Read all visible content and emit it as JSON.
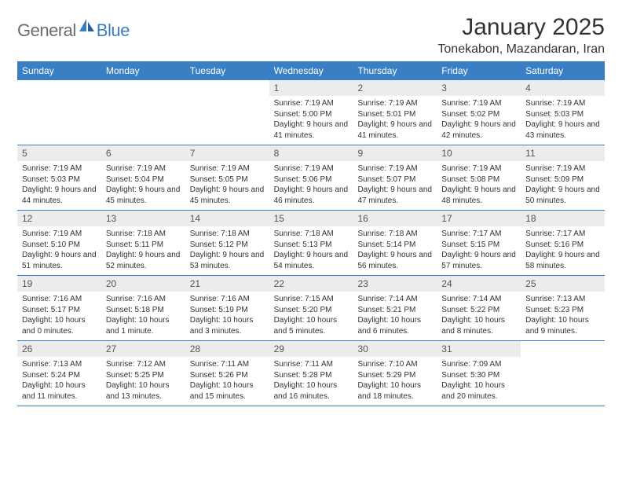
{
  "logo": {
    "text1": "General",
    "text2": "Blue"
  },
  "title": "January 2025",
  "location": "Tonekabon, Mazandaran, Iran",
  "colors": {
    "header_bg": "#3a7fc4",
    "daynum_bg": "#ececec",
    "row_border": "#3a7fc4",
    "text": "#333333",
    "logo_gray": "#6b6b6b",
    "logo_blue": "#3a7fc4"
  },
  "day_names": [
    "Sunday",
    "Monday",
    "Tuesday",
    "Wednesday",
    "Thursday",
    "Friday",
    "Saturday"
  ],
  "weeks": [
    [
      {
        "n": "",
        "sr": "",
        "ss": "",
        "dl": ""
      },
      {
        "n": "",
        "sr": "",
        "ss": "",
        "dl": ""
      },
      {
        "n": "",
        "sr": "",
        "ss": "",
        "dl": ""
      },
      {
        "n": "1",
        "sr": "Sunrise: 7:19 AM",
        "ss": "Sunset: 5:00 PM",
        "dl": "Daylight: 9 hours and 41 minutes."
      },
      {
        "n": "2",
        "sr": "Sunrise: 7:19 AM",
        "ss": "Sunset: 5:01 PM",
        "dl": "Daylight: 9 hours and 41 minutes."
      },
      {
        "n": "3",
        "sr": "Sunrise: 7:19 AM",
        "ss": "Sunset: 5:02 PM",
        "dl": "Daylight: 9 hours and 42 minutes."
      },
      {
        "n": "4",
        "sr": "Sunrise: 7:19 AM",
        "ss": "Sunset: 5:03 PM",
        "dl": "Daylight: 9 hours and 43 minutes."
      }
    ],
    [
      {
        "n": "5",
        "sr": "Sunrise: 7:19 AM",
        "ss": "Sunset: 5:03 PM",
        "dl": "Daylight: 9 hours and 44 minutes."
      },
      {
        "n": "6",
        "sr": "Sunrise: 7:19 AM",
        "ss": "Sunset: 5:04 PM",
        "dl": "Daylight: 9 hours and 45 minutes."
      },
      {
        "n": "7",
        "sr": "Sunrise: 7:19 AM",
        "ss": "Sunset: 5:05 PM",
        "dl": "Daylight: 9 hours and 45 minutes."
      },
      {
        "n": "8",
        "sr": "Sunrise: 7:19 AM",
        "ss": "Sunset: 5:06 PM",
        "dl": "Daylight: 9 hours and 46 minutes."
      },
      {
        "n": "9",
        "sr": "Sunrise: 7:19 AM",
        "ss": "Sunset: 5:07 PM",
        "dl": "Daylight: 9 hours and 47 minutes."
      },
      {
        "n": "10",
        "sr": "Sunrise: 7:19 AM",
        "ss": "Sunset: 5:08 PM",
        "dl": "Daylight: 9 hours and 48 minutes."
      },
      {
        "n": "11",
        "sr": "Sunrise: 7:19 AM",
        "ss": "Sunset: 5:09 PM",
        "dl": "Daylight: 9 hours and 50 minutes."
      }
    ],
    [
      {
        "n": "12",
        "sr": "Sunrise: 7:19 AM",
        "ss": "Sunset: 5:10 PM",
        "dl": "Daylight: 9 hours and 51 minutes."
      },
      {
        "n": "13",
        "sr": "Sunrise: 7:18 AM",
        "ss": "Sunset: 5:11 PM",
        "dl": "Daylight: 9 hours and 52 minutes."
      },
      {
        "n": "14",
        "sr": "Sunrise: 7:18 AM",
        "ss": "Sunset: 5:12 PM",
        "dl": "Daylight: 9 hours and 53 minutes."
      },
      {
        "n": "15",
        "sr": "Sunrise: 7:18 AM",
        "ss": "Sunset: 5:13 PM",
        "dl": "Daylight: 9 hours and 54 minutes."
      },
      {
        "n": "16",
        "sr": "Sunrise: 7:18 AM",
        "ss": "Sunset: 5:14 PM",
        "dl": "Daylight: 9 hours and 56 minutes."
      },
      {
        "n": "17",
        "sr": "Sunrise: 7:17 AM",
        "ss": "Sunset: 5:15 PM",
        "dl": "Daylight: 9 hours and 57 minutes."
      },
      {
        "n": "18",
        "sr": "Sunrise: 7:17 AM",
        "ss": "Sunset: 5:16 PM",
        "dl": "Daylight: 9 hours and 58 minutes."
      }
    ],
    [
      {
        "n": "19",
        "sr": "Sunrise: 7:16 AM",
        "ss": "Sunset: 5:17 PM",
        "dl": "Daylight: 10 hours and 0 minutes."
      },
      {
        "n": "20",
        "sr": "Sunrise: 7:16 AM",
        "ss": "Sunset: 5:18 PM",
        "dl": "Daylight: 10 hours and 1 minute."
      },
      {
        "n": "21",
        "sr": "Sunrise: 7:16 AM",
        "ss": "Sunset: 5:19 PM",
        "dl": "Daylight: 10 hours and 3 minutes."
      },
      {
        "n": "22",
        "sr": "Sunrise: 7:15 AM",
        "ss": "Sunset: 5:20 PM",
        "dl": "Daylight: 10 hours and 5 minutes."
      },
      {
        "n": "23",
        "sr": "Sunrise: 7:14 AM",
        "ss": "Sunset: 5:21 PM",
        "dl": "Daylight: 10 hours and 6 minutes."
      },
      {
        "n": "24",
        "sr": "Sunrise: 7:14 AM",
        "ss": "Sunset: 5:22 PM",
        "dl": "Daylight: 10 hours and 8 minutes."
      },
      {
        "n": "25",
        "sr": "Sunrise: 7:13 AM",
        "ss": "Sunset: 5:23 PM",
        "dl": "Daylight: 10 hours and 9 minutes."
      }
    ],
    [
      {
        "n": "26",
        "sr": "Sunrise: 7:13 AM",
        "ss": "Sunset: 5:24 PM",
        "dl": "Daylight: 10 hours and 11 minutes."
      },
      {
        "n": "27",
        "sr": "Sunrise: 7:12 AM",
        "ss": "Sunset: 5:25 PM",
        "dl": "Daylight: 10 hours and 13 minutes."
      },
      {
        "n": "28",
        "sr": "Sunrise: 7:11 AM",
        "ss": "Sunset: 5:26 PM",
        "dl": "Daylight: 10 hours and 15 minutes."
      },
      {
        "n": "29",
        "sr": "Sunrise: 7:11 AM",
        "ss": "Sunset: 5:28 PM",
        "dl": "Daylight: 10 hours and 16 minutes."
      },
      {
        "n": "30",
        "sr": "Sunrise: 7:10 AM",
        "ss": "Sunset: 5:29 PM",
        "dl": "Daylight: 10 hours and 18 minutes."
      },
      {
        "n": "31",
        "sr": "Sunrise: 7:09 AM",
        "ss": "Sunset: 5:30 PM",
        "dl": "Daylight: 10 hours and 20 minutes."
      },
      {
        "n": "",
        "sr": "",
        "ss": "",
        "dl": ""
      }
    ]
  ]
}
